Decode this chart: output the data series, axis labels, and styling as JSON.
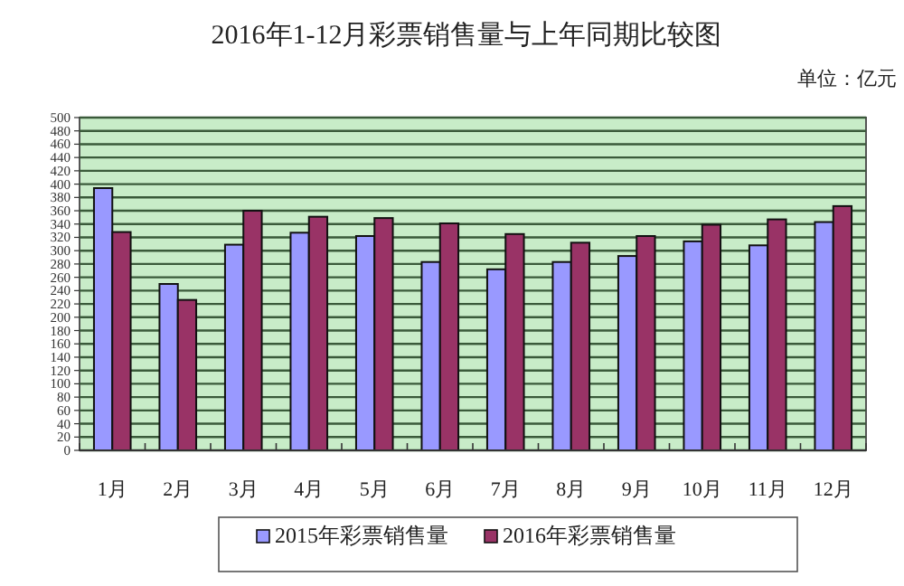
{
  "chart_data": {
    "type": "bar",
    "title": "2016年1-12月彩票销售量与上年同期比较图",
    "ylabel": "单位：亿元",
    "categories": [
      "1月",
      "2月",
      "3月",
      "4月",
      "5月",
      "6月",
      "7月",
      "8月",
      "9月",
      "10月",
      "11月",
      "12月"
    ],
    "series": [
      {
        "name": "2015年彩票销售量",
        "color": "#9999ff",
        "values": [
          394,
          250,
          309,
          327,
          322,
          283,
          272,
          283,
          292,
          314,
          308,
          343
        ]
      },
      {
        "name": "2016年彩票销售量",
        "color": "#993366",
        "values": [
          328,
          226,
          360,
          351,
          349,
          341,
          325,
          312,
          322,
          339,
          347,
          367
        ]
      }
    ],
    "ylim": [
      0,
      500
    ],
    "yticks": [
      0,
      20,
      40,
      60,
      80,
      100,
      120,
      140,
      160,
      180,
      200,
      220,
      240,
      260,
      280,
      300,
      320,
      340,
      360,
      380,
      400,
      420,
      440,
      460,
      480,
      500
    ],
    "grid": "y",
    "legend": "bottom"
  }
}
